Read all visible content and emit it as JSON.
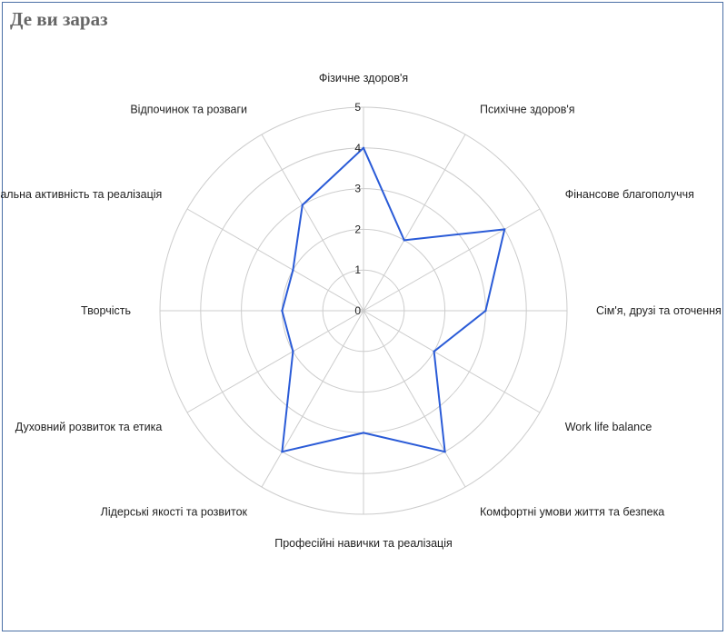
{
  "chart_data": {
    "type": "radar",
    "title": "Де ви зараз",
    "categories": [
      "Фізичне здоров'я",
      "Психічне здоров'я",
      "Фінансове благополуччя",
      "Сім'я, друзі та оточення",
      "Work life balance",
      "Комфортні умови життя та безпека",
      "Професійні навички та реалізація",
      "Лідерські якості та розвиток",
      "Духовний розвиток та етика",
      "Творчість",
      "Соціальна активність та реалізація",
      "Відпочинок та розваги"
    ],
    "series": [
      {
        "values": [
          4,
          2,
          4,
          3,
          2,
          4,
          3,
          4,
          2,
          2,
          2,
          3
        ]
      }
    ],
    "ticks": [
      "0",
      "1",
      "2",
      "3",
      "4",
      "5"
    ],
    "rlim": [
      0,
      5
    ],
    "grid": true,
    "line_color": "#2a5bd7",
    "grid_color": "#cccccc"
  }
}
